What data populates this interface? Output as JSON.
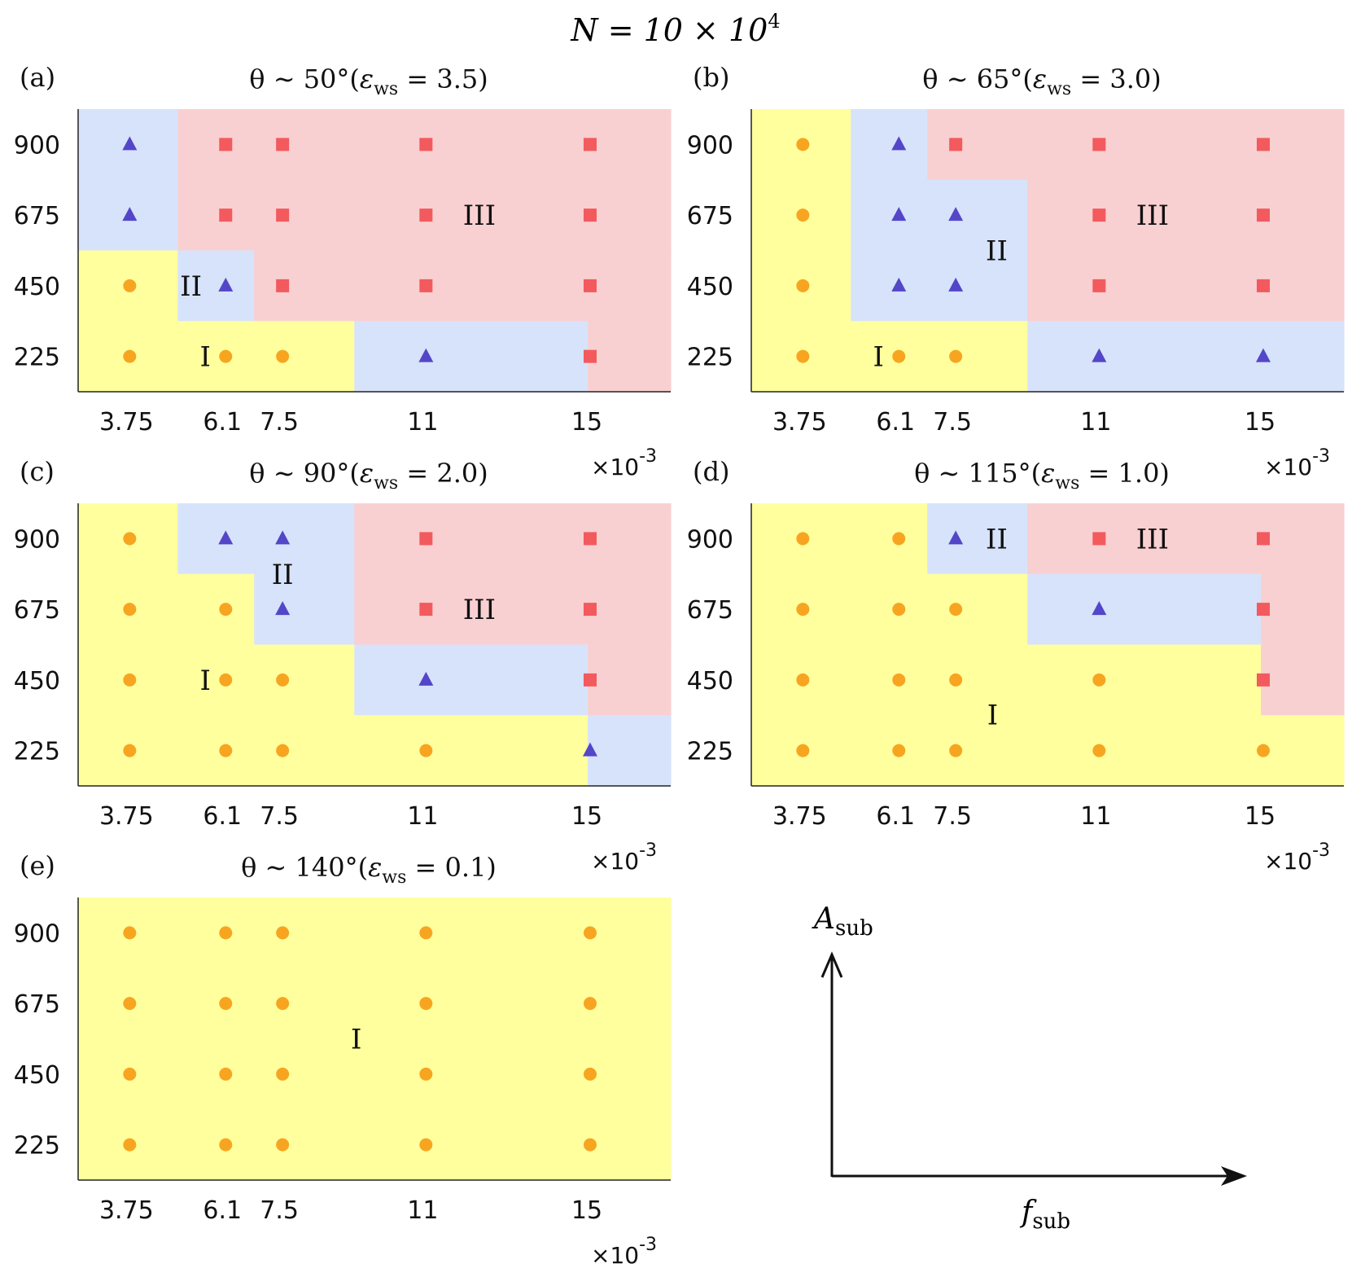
{
  "figure_title": {
    "main": "N = 10 × 10",
    "sup": "4"
  },
  "colors": {
    "region_I": "#ffff9e",
    "region_II": "#d7e3fb",
    "region_III": "#f9d0d1",
    "circle": "#f7a520",
    "triangle": "#5446c8",
    "square": "#f25a5e",
    "axis": "#222222"
  },
  "chart_data": [
    {
      "type": "scatter",
      "panel": "(a)",
      "title": "θ ~ 50°(ε_ws = 3.5)",
      "title_parts": {
        "theta": "θ ∼ 50°(",
        "eps": "ε",
        "sub": "ws",
        "rest": " = 3.5)"
      },
      "x_ticks": [
        "3.75",
        "6.1",
        "7.5",
        "11",
        "15"
      ],
      "x_exponent": "×10",
      "x_exponent_sup": "-3",
      "y_ticks": [
        "900",
        "675",
        "450",
        "225"
      ],
      "grid": [
        [
          "II",
          "III",
          "III",
          "III",
          "III",
          "III"
        ],
        [
          "II",
          "III",
          "III",
          "III",
          "III",
          "III"
        ],
        [
          "I",
          "II",
          "III",
          "III",
          "III",
          "III"
        ],
        [
          "I",
          "I",
          "I",
          "II",
          "II",
          "III"
        ]
      ],
      "markers": [
        [
          "triangle",
          "square",
          "square",
          "square",
          "square"
        ],
        [
          "triangle",
          "square",
          "square",
          "square",
          "square"
        ],
        [
          "circle",
          "triangle",
          "square",
          "square",
          "square"
        ],
        [
          "circle",
          "circle",
          "circle",
          "triangle",
          "square"
        ]
      ],
      "labels": [
        {
          "text": "I",
          "x": 5.6,
          "y": 225
        },
        {
          "text": "II",
          "x": 5.25,
          "y": 450
        },
        {
          "text": "III",
          "x": 12.3,
          "y": 675
        }
      ]
    },
    {
      "type": "scatter",
      "panel": "(b)",
      "title": "θ ~ 65°(ε_ws = 3.0)",
      "title_parts": {
        "theta": "θ ∼ 65°(",
        "eps": "ε",
        "sub": "ws",
        "rest": " = 3.0)"
      },
      "x_ticks": [
        "3.75",
        "6.1",
        "7.5",
        "11",
        "15"
      ],
      "x_exponent": "×10",
      "x_exponent_sup": "-3",
      "y_ticks": [
        "900",
        "675",
        "450",
        "225"
      ],
      "grid": [
        [
          "I",
          "II",
          "III",
          "III",
          "III",
          "III"
        ],
        [
          "I",
          "II",
          "II",
          "III",
          "III",
          "III"
        ],
        [
          "I",
          "II",
          "II",
          "III",
          "III",
          "III"
        ],
        [
          "I",
          "I",
          "I",
          "II",
          "II",
          "II"
        ]
      ],
      "markers": [
        [
          "circle",
          "triangle",
          "square",
          "square",
          "square"
        ],
        [
          "circle",
          "triangle",
          "triangle",
          "square",
          "square"
        ],
        [
          "circle",
          "triangle",
          "triangle",
          "square",
          "square"
        ],
        [
          "circle",
          "circle",
          "circle",
          "triangle",
          "triangle"
        ]
      ],
      "labels": [
        {
          "text": "I",
          "x": 5.6,
          "y": 225
        },
        {
          "text": "II",
          "x": 8.5,
          "y": 562
        },
        {
          "text": "III",
          "x": 12.3,
          "y": 675
        }
      ]
    },
    {
      "type": "scatter",
      "panel": "(c)",
      "title": "θ ~ 90°(ε_ws = 2.0)",
      "title_parts": {
        "theta": "θ ∼ 90°(",
        "eps": "ε",
        "sub": "ws",
        "rest": " = 2.0)"
      },
      "x_ticks": [
        "3.75",
        "6.1",
        "7.5",
        "11",
        "15"
      ],
      "x_exponent": "×10",
      "x_exponent_sup": "-3",
      "y_ticks": [
        "900",
        "675",
        "450",
        "225"
      ],
      "grid": [
        [
          "I",
          "II",
          "II",
          "III",
          "III",
          "III"
        ],
        [
          "I",
          "I",
          "II",
          "III",
          "III",
          "III"
        ],
        [
          "I",
          "I",
          "I",
          "II",
          "II",
          "III"
        ],
        [
          "I",
          "I",
          "I",
          "I",
          "I",
          "II"
        ]
      ],
      "markers": [
        [
          "circle",
          "triangle",
          "triangle",
          "square",
          "square"
        ],
        [
          "circle",
          "circle",
          "triangle",
          "square",
          "square"
        ],
        [
          "circle",
          "circle",
          "circle",
          "triangle",
          "square"
        ],
        [
          "circle",
          "circle",
          "circle",
          "circle",
          "triangle"
        ]
      ],
      "labels": [
        {
          "text": "I",
          "x": 5.6,
          "y": 450
        },
        {
          "text": "II",
          "x": 7.5,
          "y": 787
        },
        {
          "text": "III",
          "x": 12.3,
          "y": 675
        }
      ]
    },
    {
      "type": "scatter",
      "panel": "(d)",
      "title": "θ ~ 115°(ε_ws = 1.0)",
      "title_parts": {
        "theta": "θ ∼ 115°(",
        "eps": "ε",
        "sub": "ws",
        "rest": " = 1.0)"
      },
      "x_ticks": [
        "3.75",
        "6.1",
        "7.5",
        "11",
        "15"
      ],
      "x_exponent": "×10",
      "x_exponent_sup": "-3",
      "y_ticks": [
        "900",
        "675",
        "450",
        "225"
      ],
      "grid": [
        [
          "I",
          "I",
          "II",
          "III",
          "III",
          "III"
        ],
        [
          "I",
          "I",
          "I",
          "II",
          "II",
          "III"
        ],
        [
          "I",
          "I",
          "I",
          "I",
          "I",
          "III"
        ],
        [
          "I",
          "I",
          "I",
          "I",
          "I",
          "I"
        ]
      ],
      "markers": [
        [
          "circle",
          "circle",
          "triangle",
          "square",
          "square"
        ],
        [
          "circle",
          "circle",
          "circle",
          "triangle",
          "square"
        ],
        [
          "circle",
          "circle",
          "circle",
          "circle",
          "square"
        ],
        [
          "circle",
          "circle",
          "circle",
          "circle",
          "circle"
        ]
      ],
      "labels": [
        {
          "text": "I",
          "x": 8.4,
          "y": 340
        },
        {
          "text": "II",
          "x": 8.5,
          "y": 900
        },
        {
          "text": "III",
          "x": 12.3,
          "y": 900
        }
      ]
    },
    {
      "type": "scatter",
      "panel": "(e)",
      "title": "θ ~ 140°(ε_ws = 0.1)",
      "title_parts": {
        "theta": "θ ∼ 140°(",
        "eps": "ε",
        "sub": "ws",
        "rest": " = 0.1)"
      },
      "x_ticks": [
        "3.75",
        "6.1",
        "7.5",
        "11",
        "15"
      ],
      "x_exponent": "×10",
      "x_exponent_sup": "-3",
      "y_ticks": [
        "900",
        "675",
        "450",
        "225"
      ],
      "grid": [
        [
          "I",
          "I",
          "I",
          "I",
          "I",
          "I"
        ],
        [
          "I",
          "I",
          "I",
          "I",
          "I",
          "I"
        ],
        [
          "I",
          "I",
          "I",
          "I",
          "I",
          "I"
        ],
        [
          "I",
          "I",
          "I",
          "I",
          "I",
          "I"
        ]
      ],
      "markers": [
        [
          "circle",
          "circle",
          "circle",
          "circle",
          "circle"
        ],
        [
          "circle",
          "circle",
          "circle",
          "circle",
          "circle"
        ],
        [
          "circle",
          "circle",
          "circle",
          "circle",
          "circle"
        ],
        [
          "circle",
          "circle",
          "circle",
          "circle",
          "circle"
        ]
      ],
      "labels": [
        {
          "text": "I",
          "x": 9.3,
          "y": 562
        }
      ]
    }
  ],
  "axes_legend": {
    "y_label": {
      "base": "A",
      "sub": "sub"
    },
    "x_label": {
      "base": "f",
      "sub": "sub"
    }
  }
}
